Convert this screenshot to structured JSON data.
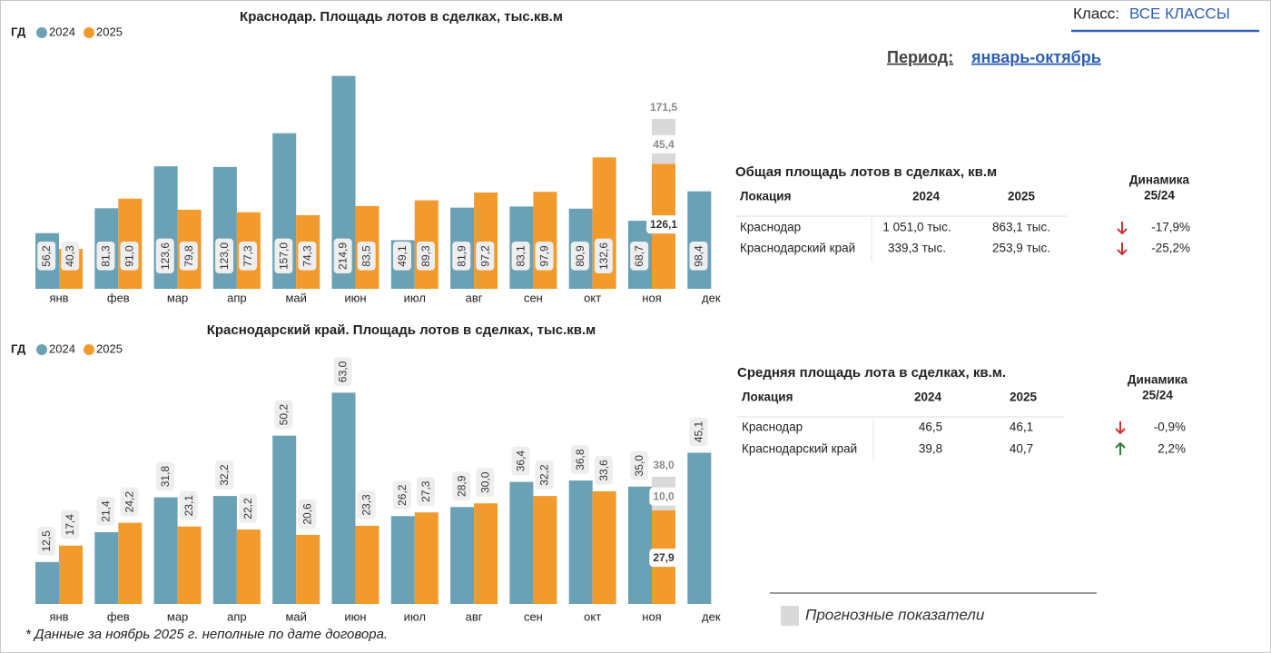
{
  "header": {
    "class_label": "Класс:",
    "class_value": "ВСЕ КЛАССЫ",
    "period_label": "Период:",
    "period_value": "январь-октябрь"
  },
  "chart_data": [
    {
      "type": "bar",
      "title": "Краснодар. Площадь лотов в сделках, тыс.кв.м",
      "legend_title": "ГД",
      "categories": [
        "янв",
        "фев",
        "мар",
        "апр",
        "май",
        "июн",
        "июл",
        "авг",
        "сен",
        "окт",
        "ноя",
        "дек"
      ],
      "series": [
        {
          "name": "2024",
          "color": "#6aa1b5",
          "values": [
            56.2,
            81.3,
            123.6,
            123.0,
            157.0,
            214.9,
            49.1,
            81.9,
            83.1,
            80.9,
            68.7,
            98.4
          ],
          "value_labels": [
            "56,2",
            "81,3",
            "123,6",
            "123,0",
            "157,0",
            "214,9",
            "49,1",
            "81,9",
            "83,1",
            "80,9",
            "68,7",
            "98,4"
          ]
        },
        {
          "name": "2025",
          "color": "#f39a2d",
          "values": [
            40.3,
            91.0,
            79.8,
            77.3,
            74.3,
            83.5,
            89.3,
            97.2,
            97.9,
            132.6,
            126.1,
            null
          ],
          "value_labels": [
            "40,3",
            "91,0",
            "79,8",
            "77,3",
            "74,3",
            "83,5",
            "89,3",
            "97,2",
            "97,9",
            "132,6",
            "126,1",
            null
          ]
        },
        {
          "name": "Прогнозные показатели",
          "color": "#d9d9d9",
          "values": [
            null,
            null,
            null,
            null,
            null,
            null,
            null,
            null,
            null,
            null,
            45.4,
            null
          ],
          "value_labels": [
            null,
            null,
            null,
            null,
            null,
            null,
            null,
            null,
            null,
            null,
            "45,4",
            null
          ]
        }
      ],
      "forecast_total": {
        "value": 171.5,
        "label": "171,5"
      },
      "ylim": [
        0,
        220
      ]
    },
    {
      "type": "bar",
      "title": "Краснодарский край. Площадь лотов в сделках, тыс.кв.м",
      "legend_title": "ГД",
      "categories": [
        "янв",
        "фев",
        "мар",
        "апр",
        "май",
        "июн",
        "июл",
        "авг",
        "сен",
        "окт",
        "ноя",
        "дек"
      ],
      "series": [
        {
          "name": "2024",
          "color": "#6aa1b5",
          "values": [
            12.5,
            21.4,
            31.8,
            32.2,
            50.2,
            63.0,
            26.2,
            28.9,
            36.4,
            36.8,
            35.0,
            45.1
          ],
          "value_labels": [
            "12,5",
            "21,4",
            "31,8",
            "32,2",
            "50,2",
            "63,0",
            "26,2",
            "28,9",
            "36,4",
            "36,8",
            "35,0",
            "45,1"
          ]
        },
        {
          "name": "2025",
          "color": "#f39a2d",
          "values": [
            17.4,
            24.2,
            23.1,
            22.2,
            20.6,
            23.3,
            27.3,
            30.0,
            32.2,
            33.6,
            27.9,
            null
          ],
          "value_labels": [
            "17,4",
            "24,2",
            "23,1",
            "22,2",
            "20,6",
            "23,3",
            "27,3",
            "30,0",
            "32,2",
            "33,6",
            "27,9",
            null
          ]
        },
        {
          "color": "#d9d9d9",
          "values": [
            null,
            null,
            null,
            null,
            null,
            null,
            null,
            null,
            null,
            null,
            10.0,
            null
          ],
          "value_labels": [
            null,
            null,
            null,
            null,
            null,
            null,
            null,
            null,
            null,
            null,
            "10,0",
            null
          ]
        }
      ],
      "forecast_total": {
        "value": 38.0,
        "label": "38,0"
      },
      "ylim": [
        0,
        65
      ]
    }
  ],
  "tables": [
    {
      "title": "Общая площадь лотов в сделках, кв.м",
      "columns": [
        "Локация",
        "2024",
        "2025"
      ],
      "dynamics_header": [
        "Динамика",
        "25/24"
      ],
      "rows": [
        [
          "Краснодар",
          "1 051,0 тыс.",
          "863,1 тыс.",
          "-17,9%"
        ],
        [
          "Краснодарский край",
          "339,3 тыс.",
          "253,9 тыс.",
          "-25,2%"
        ]
      ]
    },
    {
      "title": "Средняя площадь лота в сделках, кв.м.",
      "columns": [
        "Локация",
        "2024",
        "2025"
      ],
      "dynamics_header": [
        "Динамика",
        "25/24"
      ],
      "rows": [
        [
          "Краснодар",
          "46,5",
          "46,1",
          "-0,9%"
        ],
        [
          "Краснодарский край",
          "39,8",
          "40,7",
          "2,2%"
        ]
      ]
    }
  ],
  "footnote": "* Данные за ноябрь 2025 г. неполные по дате договора."
}
